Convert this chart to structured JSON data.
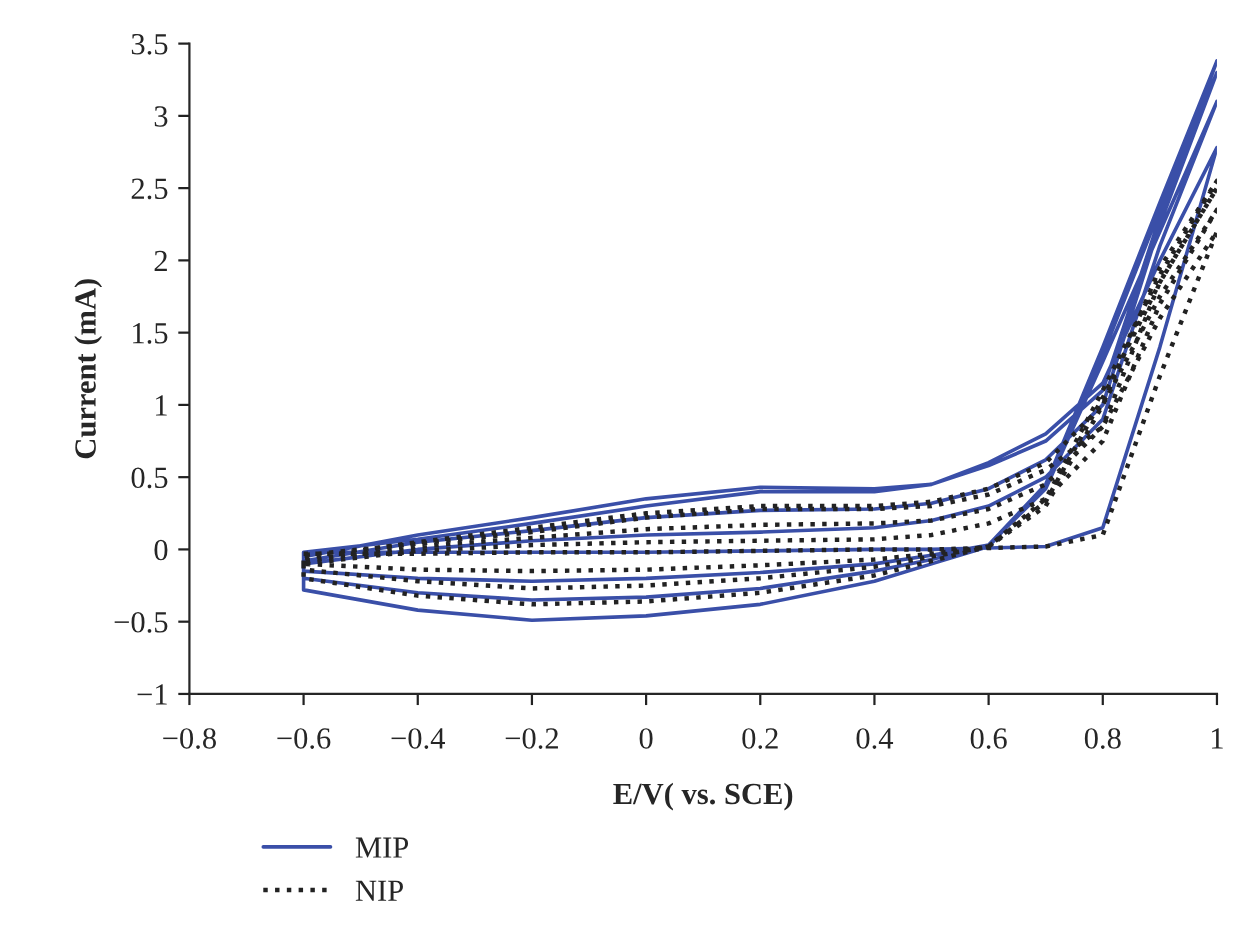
{
  "chart_data": {
    "type": "line",
    "xlabel": "E/V( vs. SCE)",
    "ylabel": "Current (mA)",
    "xlim": [
      -0.8,
      1
    ],
    "xticks": [
      {
        "value": -0.8,
        "label": "−0.8"
      },
      {
        "value": -0.6,
        "label": "−0.6"
      },
      {
        "value": -0.4,
        "label": "−0.4"
      },
      {
        "value": -0.2,
        "label": "−0.2"
      },
      0,
      0.2,
      0.4,
      0.6,
      0.8,
      1
    ],
    "ylim": [
      -1,
      3.5
    ],
    "yticks": [
      {
        "value": -1,
        "label": "−1"
      },
      {
        "value": -0.5,
        "label": "−0.5"
      },
      0,
      0.5,
      1,
      1.5,
      2,
      2.5,
      3,
      3.5
    ],
    "legend": "bottom left",
    "grid": false,
    "series": [
      {
        "name": "MIP",
        "color": "#3a4fa8",
        "line_style": "solid",
        "x": [
          -0.6,
          -0.4,
          -0.2,
          0,
          0.2,
          0.4,
          0.5,
          0.6,
          0.7,
          0.8,
          0.9,
          1.0,
          0.9,
          0.8,
          0.7,
          0.6,
          0.5,
          0.4,
          0.2,
          0,
          -0.2,
          -0.4,
          -0.6,
          -0.6,
          -0.4,
          -0.2,
          0,
          0.2,
          0.4,
          0.5,
          0.6,
          0.7,
          0.8,
          0.9,
          1.0,
          0.9,
          0.8,
          0.7,
          0.6,
          0.5,
          0.4,
          0.2,
          0,
          -0.2,
          -0.4,
          -0.6,
          -0.6,
          -0.4,
          -0.2,
          0,
          0.2,
          0.4,
          0.5,
          0.6,
          0.7,
          0.8,
          0.9,
          1.0,
          0.9,
          0.8,
          0.7,
          0.6,
          0.5,
          0.4,
          0.2,
          0,
          -0.2,
          -0.4,
          -0.6,
          -0.6,
          -0.4,
          -0.2,
          0,
          0.2,
          0.4,
          0.5,
          0.6,
          0.7,
          0.8,
          0.9,
          1.0,
          0.9,
          0.8,
          0.7,
          0.6,
          0.5,
          0.4,
          0.2,
          0,
          -0.2,
          -0.4,
          -0.6
        ],
        "values": [
          -0.02,
          -0.02,
          -0.02,
          -0.02,
          -0.01,
          0.0,
          0.0,
          0.01,
          0.02,
          0.15,
          1.4,
          2.78,
          2.0,
          1.15,
          0.8,
          0.6,
          0.45,
          0.4,
          0.4,
          0.3,
          0.18,
          0.07,
          -0.02,
          -0.28,
          -0.42,
          -0.49,
          -0.46,
          -0.38,
          -0.22,
          -0.1,
          0.02,
          0.45,
          1.4,
          2.4,
          3.38,
          2.3,
          1.1,
          0.75,
          0.58,
          0.45,
          0.42,
          0.43,
          0.35,
          0.22,
          0.1,
          -0.05,
          -0.2,
          -0.3,
          -0.35,
          -0.33,
          -0.27,
          -0.15,
          -0.07,
          0.03,
          0.45,
          1.35,
          2.35,
          3.3,
          2.25,
          1.0,
          0.62,
          0.42,
          0.32,
          0.28,
          0.27,
          0.22,
          0.13,
          0.05,
          -0.08,
          -0.15,
          -0.2,
          -0.22,
          -0.2,
          -0.16,
          -0.1,
          -0.04,
          0.03,
          0.42,
          1.3,
          2.2,
          3.1,
          2.1,
          0.9,
          0.5,
          0.3,
          0.2,
          0.15,
          0.12,
          0.1,
          0.06,
          0.0,
          -0.1
        ]
      },
      {
        "name": "NIP",
        "color": "#222222",
        "line_style": "dotted",
        "x": [
          -0.6,
          -0.4,
          -0.2,
          0,
          0.2,
          0.4,
          0.5,
          0.6,
          0.7,
          0.8,
          0.9,
          1.0,
          0.9,
          0.8,
          0.7,
          0.6,
          0.5,
          0.4,
          0.2,
          0,
          -0.2,
          -0.4,
          -0.6,
          -0.6,
          -0.4,
          -0.2,
          0,
          0.2,
          0.4,
          0.5,
          0.6,
          0.7,
          0.8,
          0.9,
          1.0,
          0.9,
          0.8,
          0.7,
          0.6,
          0.5,
          0.4,
          0.2,
          0,
          -0.2,
          -0.4,
          -0.6,
          -0.6,
          -0.4,
          -0.2,
          0,
          0.2,
          0.4,
          0.5,
          0.6,
          0.7,
          0.8,
          0.9,
          1.0,
          0.9,
          0.8,
          0.7,
          0.6,
          0.5,
          0.4,
          0.2,
          0,
          -0.2,
          -0.4,
          -0.6,
          -0.6,
          -0.4,
          -0.2,
          0,
          0.2,
          0.4,
          0.5,
          0.6,
          0.7,
          0.8,
          0.9,
          1.0,
          0.9,
          0.8,
          0.7,
          0.6,
          0.5,
          0.4,
          0.2,
          0,
          -0.2,
          -0.4,
          -0.6
        ],
        "values": [
          -0.03,
          -0.03,
          -0.02,
          -0.02,
          -0.01,
          0.0,
          0.0,
          0.01,
          0.02,
          0.1,
          1.2,
          2.2,
          1.6,
          0.85,
          0.55,
          0.38,
          0.3,
          0.28,
          0.28,
          0.22,
          0.12,
          0.04,
          -0.04,
          -0.2,
          -0.32,
          -0.38,
          -0.36,
          -0.3,
          -0.18,
          -0.08,
          0.02,
          0.35,
          1.1,
          1.9,
          2.55,
          1.95,
          1.0,
          0.6,
          0.42,
          0.33,
          0.3,
          0.3,
          0.25,
          0.15,
          0.05,
          -0.06,
          -0.14,
          -0.22,
          -0.27,
          -0.25,
          -0.2,
          -0.12,
          -0.05,
          0.02,
          0.33,
          1.05,
          1.85,
          2.5,
          1.85,
          0.85,
          0.45,
          0.28,
          0.2,
          0.18,
          0.17,
          0.14,
          0.08,
          0.02,
          -0.08,
          -0.1,
          -0.14,
          -0.15,
          -0.14,
          -0.11,
          -0.07,
          -0.03,
          0.02,
          0.3,
          1.0,
          1.75,
          2.35,
          1.7,
          0.75,
          0.35,
          0.18,
          0.1,
          0.07,
          0.06,
          0.05,
          0.03,
          -0.01,
          -0.1
        ]
      }
    ]
  }
}
